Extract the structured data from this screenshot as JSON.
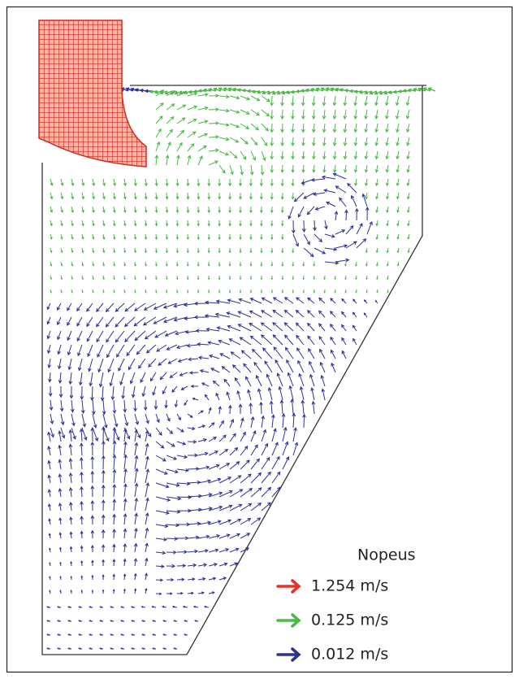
{
  "legend": {
    "title": "Nopeus",
    "items": [
      {
        "label": "1.254 m/s",
        "color": "#e8302a"
      },
      {
        "label": "0.125 m/s",
        "color": "#4cb848"
      },
      {
        "label": "0.012 m/s",
        "color": "#2e3192"
      }
    ]
  }
}
